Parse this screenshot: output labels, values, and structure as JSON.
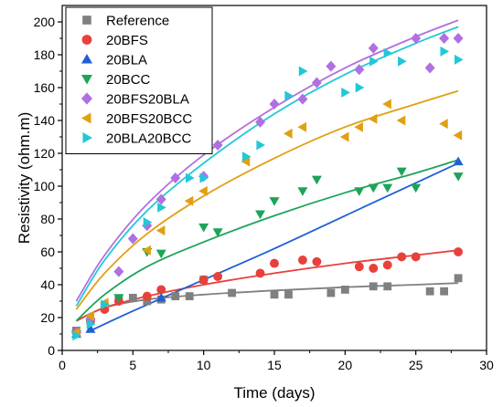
{
  "chart_data": {
    "type": "scatter",
    "xlabel": "Time (days)",
    "ylabel": "Resistivity (ohm.m)",
    "xlim": [
      0,
      30
    ],
    "ylim": [
      0,
      210
    ],
    "xticks": [
      "0",
      "5",
      "10",
      "15",
      "20",
      "25",
      "30"
    ],
    "yticks": [
      "0",
      "20",
      "40",
      "60",
      "80",
      "100",
      "120",
      "140",
      "160",
      "180",
      "200"
    ],
    "grid": false,
    "legend_position": "top-left",
    "series": [
      {
        "name": "Reference",
        "color": "#808080",
        "marker": "square",
        "x": [
          1,
          2,
          3,
          4,
          5,
          6,
          7,
          8,
          9,
          10,
          12,
          15,
          16,
          19,
          20,
          22,
          23,
          26,
          27,
          28
        ],
        "y": [
          12,
          18,
          27,
          31,
          32,
          30,
          31,
          33,
          33,
          43,
          35,
          34,
          34,
          35,
          37,
          39,
          39,
          36,
          36,
          44
        ],
        "fit": [
          [
            1,
            18
          ],
          [
            3,
            26
          ],
          [
            6,
            31
          ],
          [
            10,
            34
          ],
          [
            15,
            36.5
          ],
          [
            20,
            38.5
          ],
          [
            25,
            40
          ],
          [
            28,
            41
          ]
        ]
      },
      {
        "name": "20BFS",
        "color": "#e8403a",
        "marker": "circle",
        "x": [
          1,
          2,
          3,
          4,
          6,
          7,
          10,
          11,
          14,
          15,
          17,
          18,
          21,
          22,
          23,
          24,
          25,
          28
        ],
        "y": [
          11,
          18,
          25,
          30,
          33,
          37,
          43,
          45,
          47,
          53,
          55,
          54,
          51,
          50,
          52,
          57,
          57,
          60
        ],
        "fit": [
          [
            1,
            18
          ],
          [
            3,
            26
          ],
          [
            6,
            33
          ],
          [
            10,
            40
          ],
          [
            15,
            47
          ],
          [
            20,
            53
          ],
          [
            25,
            58
          ],
          [
            28,
            61
          ]
        ]
      },
      {
        "name": "20BLA",
        "color": "#1f5fd6",
        "marker": "triangle-up",
        "x": [
          1,
          2,
          7,
          28
        ],
        "y": [
          10,
          13,
          32,
          115
        ],
        "fit": [
          [
            2,
            12
          ],
          [
            5,
            24
          ],
          [
            10,
            43
          ],
          [
            15,
            62
          ],
          [
            20,
            82
          ],
          [
            25,
            102
          ],
          [
            28,
            114
          ]
        ]
      },
      {
        "name": "20BCC",
        "color": "#1ea35a",
        "marker": "triangle-down",
        "x": [
          1,
          2,
          4,
          6,
          7,
          10,
          11,
          14,
          15,
          17,
          18,
          21,
          22,
          23,
          24,
          25,
          28
        ],
        "y": [
          10,
          17,
          32,
          60,
          59,
          75,
          72,
          83,
          91,
          97,
          104,
          97,
          99,
          99,
          109,
          99,
          106
        ],
        "fit": [
          [
            1,
            18
          ],
          [
            3,
            34
          ],
          [
            6,
            51
          ],
          [
            10,
            66
          ],
          [
            15,
            82
          ],
          [
            20,
            96
          ],
          [
            25,
            108
          ],
          [
            28,
            116
          ]
        ]
      },
      {
        "name": "20BFS20BLA",
        "color": "#b070e0",
        "marker": "diamond",
        "x": [
          1,
          2,
          4,
          5,
          6,
          7,
          8,
          10,
          11,
          14,
          15,
          17,
          18,
          19,
          21,
          22,
          25,
          26,
          27,
          28
        ],
        "y": [
          11,
          19,
          48,
          68,
          76,
          92,
          105,
          106,
          125,
          139,
          150,
          153,
          163,
          173,
          171,
          184,
          190,
          172,
          190,
          190
        ],
        "fit": [
          [
            1,
            30
          ],
          [
            3,
            58
          ],
          [
            6,
            89
          ],
          [
            10,
            119
          ],
          [
            15,
            148
          ],
          [
            20,
            172
          ],
          [
            25,
            191
          ],
          [
            28,
            201
          ]
        ]
      },
      {
        "name": "20BFS20BCC",
        "color": "#e0a010",
        "marker": "triangle-left",
        "x": [
          1,
          2,
          3,
          6,
          7,
          9,
          10,
          13,
          16,
          17,
          20,
          21,
          22,
          23,
          24,
          27,
          28
        ],
        "y": [
          11,
          21,
          29,
          61,
          73,
          91,
          97,
          115,
          132,
          136,
          130,
          136,
          141,
          150,
          140,
          138,
          131
        ],
        "fit": [
          [
            1,
            25
          ],
          [
            3,
            47
          ],
          [
            6,
            71
          ],
          [
            10,
            94
          ],
          [
            15,
            117
          ],
          [
            20,
            136
          ],
          [
            25,
            150
          ],
          [
            28,
            158
          ]
        ]
      },
      {
        "name": "20BLA20BCC",
        "color": "#20c8d8",
        "marker": "triangle-right",
        "x": [
          1,
          2,
          3,
          6,
          7,
          9,
          10,
          13,
          14,
          16,
          17,
          20,
          21,
          22,
          23,
          24,
          27,
          28
        ],
        "y": [
          9,
          16,
          28,
          78,
          87,
          105,
          105,
          118,
          125,
          155,
          170,
          157,
          160,
          176,
          181,
          176,
          182,
          177
        ],
        "fit": [
          [
            1,
            27
          ],
          [
            3,
            55
          ],
          [
            6,
            85
          ],
          [
            10,
            114
          ],
          [
            15,
            144
          ],
          [
            20,
            168
          ],
          [
            25,
            187
          ],
          [
            28,
            197
          ]
        ]
      }
    ]
  }
}
